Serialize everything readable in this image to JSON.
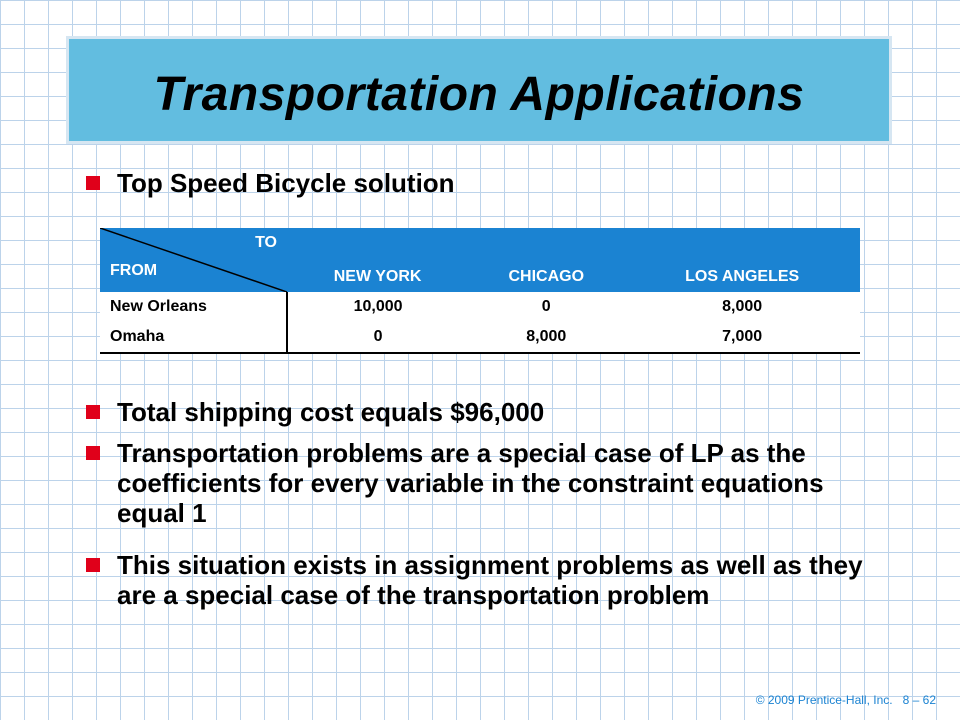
{
  "slide": {
    "title": "Transportation Applications",
    "bullets": [
      "Top Speed Bicycle solution",
      "Total shipping cost equals $96,000",
      "Transportation problems are a special case of LP as the coefficients for every variable in the constraint equations equal 1",
      "This situation exists in assignment problems as well as they are a special case of the transportation problem"
    ]
  },
  "table": {
    "corner_to": "TO",
    "corner_from": "FROM",
    "columns": [
      "NEW YORK",
      "CHICAGO",
      "LOS ANGELES"
    ],
    "rows": [
      {
        "label": "New Orleans",
        "values": [
          "10,000",
          "0",
          "8,000"
        ]
      },
      {
        "label": "Omaha",
        "values": [
          "0",
          "8,000",
          "7,000"
        ]
      }
    ]
  },
  "footer": {
    "copyright": "© 2009 Prentice-Hall, Inc.",
    "page": "8 – 62"
  },
  "colors": {
    "title_bg": "#62bde0",
    "table_header": "#1b83d2",
    "bullet": "#e0001a"
  }
}
